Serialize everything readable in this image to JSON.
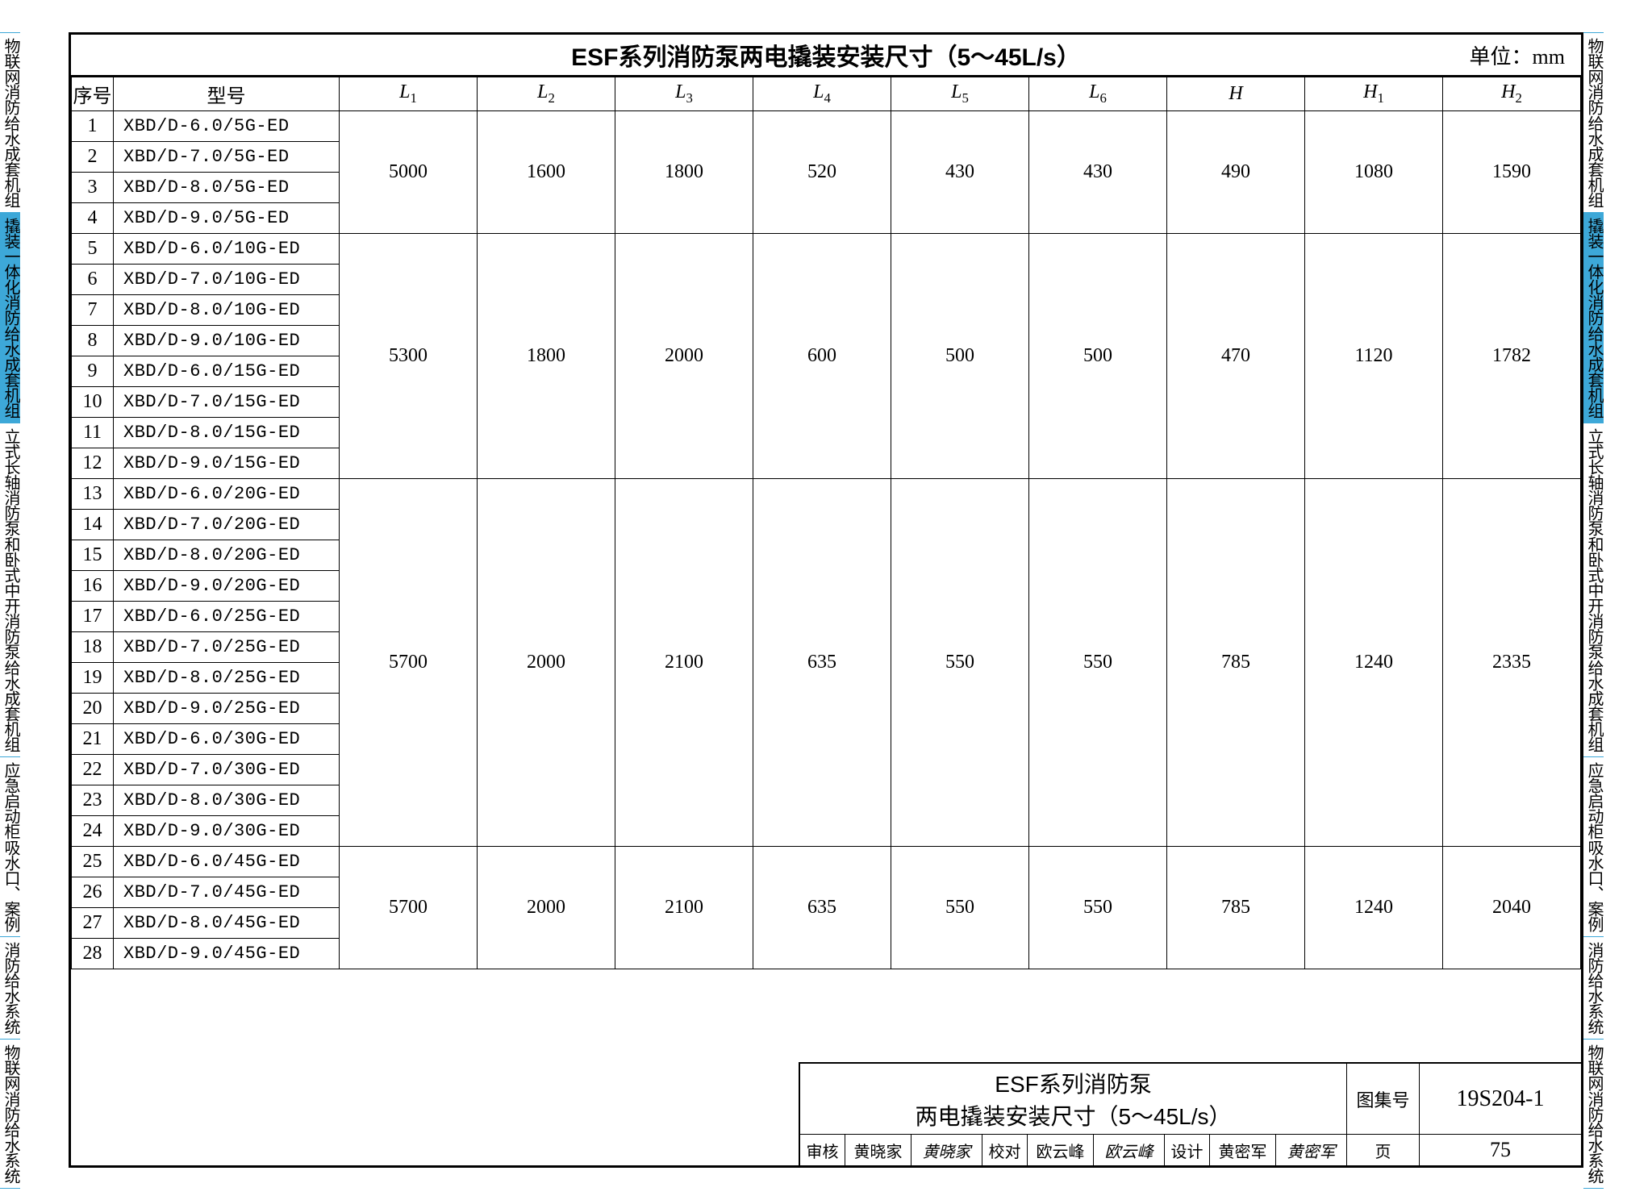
{
  "title": "ESF系列消防泵两电撬装安装尺寸（5～45L/s）",
  "unit_label": "单位：mm",
  "side_tabs": [
    {
      "lines": [
        "物联网消防",
        "给水成套机组"
      ],
      "hl": false
    },
    {
      "lines": [
        "撬装一体化消防",
        "给水成套机组"
      ],
      "hl": true
    },
    {
      "lines": [
        "立式长轴消防泵",
        "和卧式中开消防泵",
        "给水成套机组"
      ],
      "hl": false
    },
    {
      "lines": [
        "应急启动柜",
        "吸水口、案例"
      ],
      "hl": false
    },
    {
      "lines": [
        "消防给水系统"
      ],
      "hl": false
    },
    {
      "lines": [
        "物联网",
        "消防给水系统"
      ],
      "hl": false
    }
  ],
  "columns": {
    "idx": "序号",
    "model": "型号",
    "L1": "L",
    "L1s": "1",
    "L2": "L",
    "L2s": "2",
    "L3": "L",
    "L3s": "3",
    "L4": "L",
    "L4s": "4",
    "L5": "L",
    "L5s": "5",
    "L6": "L",
    "L6s": "6",
    "H": "H",
    "H1": "H",
    "H1s": "1",
    "H2": "H",
    "H2s": "2"
  },
  "groups": [
    {
      "values": [
        "5000",
        "1600",
        "1800",
        "520",
        "430",
        "430",
        "490",
        "1080",
        "1590"
      ],
      "rows": [
        {
          "idx": "1",
          "model": "XBD/D-6.0/5G-ED"
        },
        {
          "idx": "2",
          "model": "XBD/D-7.0/5G-ED"
        },
        {
          "idx": "3",
          "model": "XBD/D-8.0/5G-ED"
        },
        {
          "idx": "4",
          "model": "XBD/D-9.0/5G-ED"
        }
      ]
    },
    {
      "values": [
        "5300",
        "1800",
        "2000",
        "600",
        "500",
        "500",
        "470",
        "1120",
        "1782"
      ],
      "rows": [
        {
          "idx": "5",
          "model": "XBD/D-6.0/10G-ED"
        },
        {
          "idx": "6",
          "model": "XBD/D-7.0/10G-ED"
        },
        {
          "idx": "7",
          "model": "XBD/D-8.0/10G-ED"
        },
        {
          "idx": "8",
          "model": "XBD/D-9.0/10G-ED"
        },
        {
          "idx": "9",
          "model": "XBD/D-6.0/15G-ED"
        },
        {
          "idx": "10",
          "model": "XBD/D-7.0/15G-ED"
        },
        {
          "idx": "11",
          "model": "XBD/D-8.0/15G-ED"
        },
        {
          "idx": "12",
          "model": "XBD/D-9.0/15G-ED"
        }
      ]
    },
    {
      "values": [
        "5700",
        "2000",
        "2100",
        "635",
        "550",
        "550",
        "785",
        "1240",
        "2335"
      ],
      "rows": [
        {
          "idx": "13",
          "model": "XBD/D-6.0/20G-ED"
        },
        {
          "idx": "14",
          "model": "XBD/D-7.0/20G-ED"
        },
        {
          "idx": "15",
          "model": "XBD/D-8.0/20G-ED"
        },
        {
          "idx": "16",
          "model": "XBD/D-9.0/20G-ED"
        },
        {
          "idx": "17",
          "model": "XBD/D-6.0/25G-ED"
        },
        {
          "idx": "18",
          "model": "XBD/D-7.0/25G-ED"
        },
        {
          "idx": "19",
          "model": "XBD/D-8.0/25G-ED"
        },
        {
          "idx": "20",
          "model": "XBD/D-9.0/25G-ED"
        },
        {
          "idx": "21",
          "model": "XBD/D-6.0/30G-ED"
        },
        {
          "idx": "22",
          "model": "XBD/D-7.0/30G-ED"
        },
        {
          "idx": "23",
          "model": "XBD/D-8.0/30G-ED"
        },
        {
          "idx": "24",
          "model": "XBD/D-9.0/30G-ED"
        }
      ]
    },
    {
      "values": [
        "5700",
        "2000",
        "2100",
        "635",
        "550",
        "550",
        "785",
        "1240",
        "2040"
      ],
      "rows": [
        {
          "idx": "25",
          "model": "XBD/D-6.0/45G-ED"
        },
        {
          "idx": "26",
          "model": "XBD/D-7.0/45G-ED"
        },
        {
          "idx": "27",
          "model": "XBD/D-8.0/45G-ED"
        },
        {
          "idx": "28",
          "model": "XBD/D-9.0/45G-ED"
        }
      ]
    }
  ],
  "title_block": {
    "line1": "ESF系列消防泵",
    "line2": "两电撬装安装尺寸（5～45L/s）",
    "code_label": "图集号",
    "code_value": "19S204-1",
    "approvals": [
      {
        "role": "审核",
        "name": "黄晓家",
        "sig": "黄晓家"
      },
      {
        "role": "校对",
        "name": "欧云峰",
        "sig": "欧云峰"
      },
      {
        "role": "设计",
        "name": "黄密军",
        "sig": "黄密军"
      }
    ],
    "page_label": "页",
    "page_value": "75"
  }
}
